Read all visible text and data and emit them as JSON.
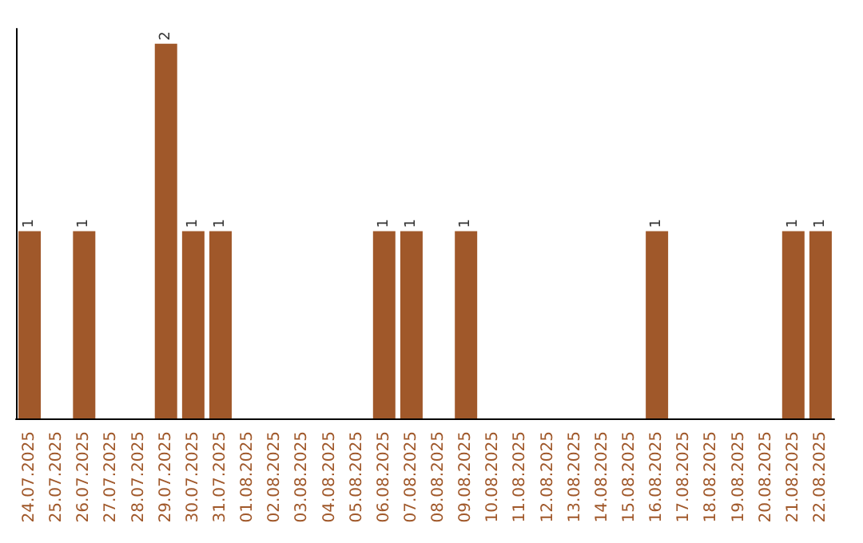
{
  "chart_data": {
    "type": "bar",
    "categories": [
      "24.07.2025",
      "25.07.2025",
      "26.07.2025",
      "27.07.2025",
      "28.07.2025",
      "29.07.2025",
      "30.07.2025",
      "31.07.2025",
      "01.08.2025",
      "02.08.2025",
      "03.08.2025",
      "04.08.2025",
      "05.08.2025",
      "06.08.2025",
      "07.08.2025",
      "08.08.2025",
      "09.08.2025",
      "10.08.2025",
      "11.08.2025",
      "12.08.2025",
      "13.08.2025",
      "14.08.2025",
      "15.08.2025",
      "16.08.2025",
      "17.08.2025",
      "18.08.2025",
      "19.08.2025",
      "20.08.2025",
      "21.08.2025",
      "22.08.2025"
    ],
    "values": [
      1,
      0,
      1,
      0,
      0,
      2,
      1,
      1,
      0,
      0,
      0,
      0,
      0,
      1,
      1,
      0,
      1,
      0,
      0,
      0,
      0,
      0,
      0,
      1,
      0,
      0,
      0,
      0,
      1,
      1
    ],
    "value_labels": [
      "1",
      null,
      "1",
      null,
      null,
      "2",
      "1",
      "1",
      null,
      null,
      null,
      null,
      null,
      "1",
      "1",
      null,
      "1",
      null,
      null,
      null,
      null,
      null,
      null,
      "1",
      null,
      null,
      null,
      null,
      "1",
      "1"
    ],
    "color": "#a0582a"
  }
}
